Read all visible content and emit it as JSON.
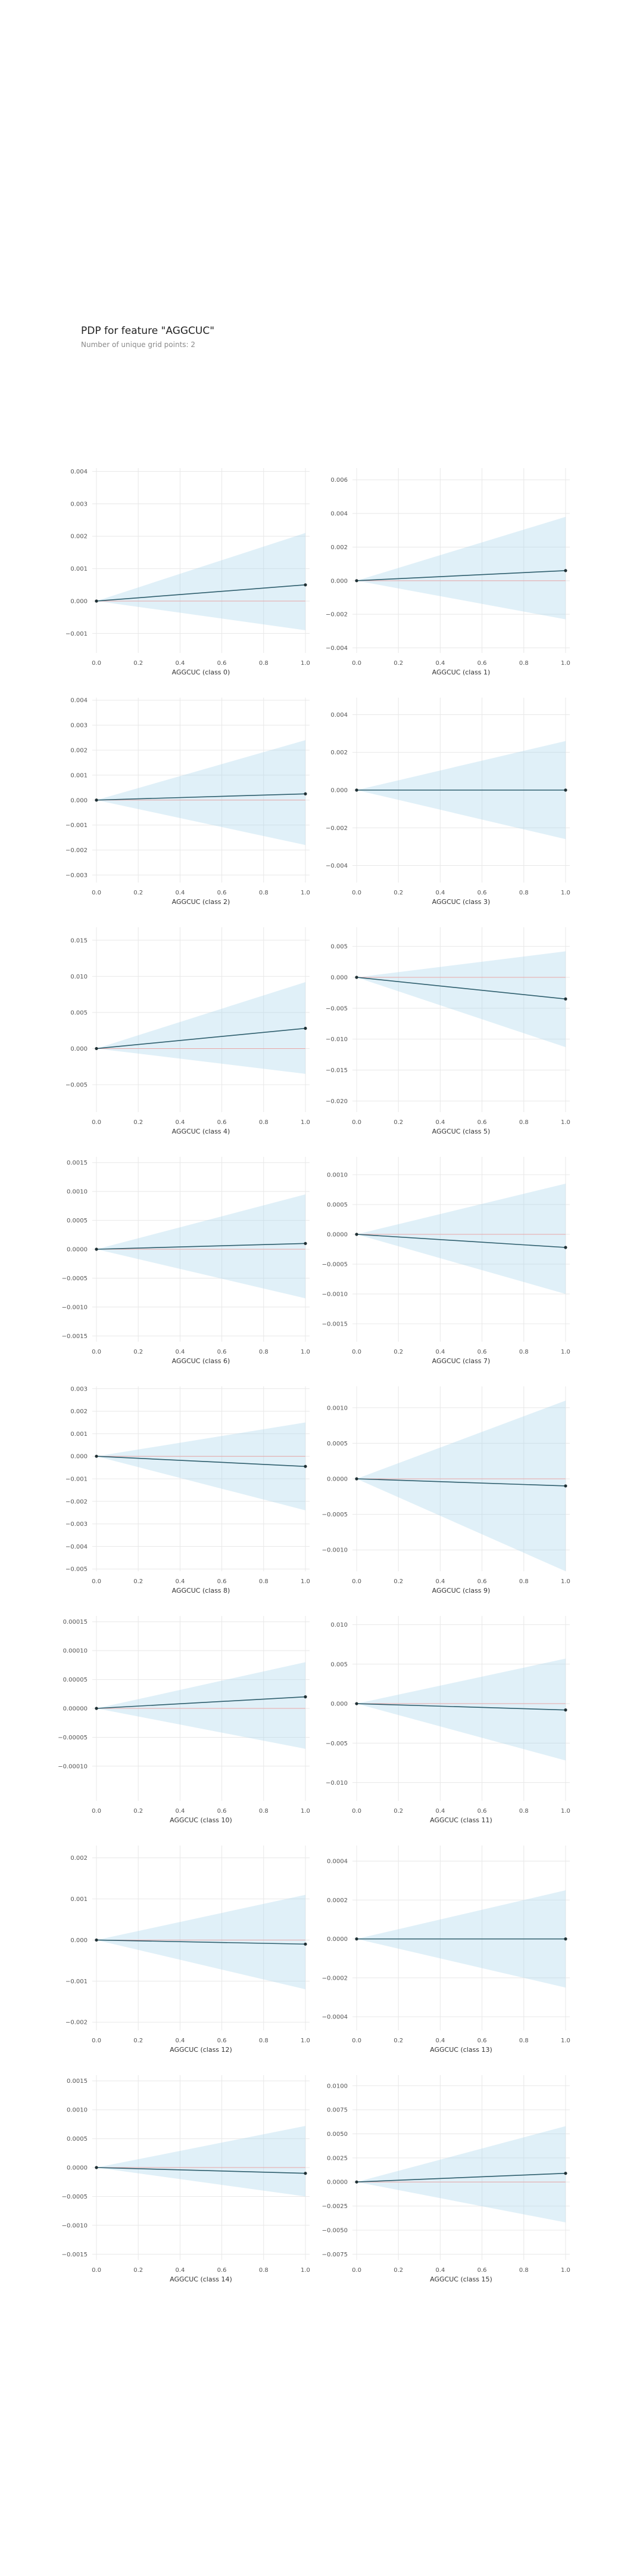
{
  "header": {
    "title": "PDP for feature \"AGGCUC\"",
    "subtitle": "Number of unique grid points: 2"
  },
  "chart_data": [
    {
      "type": "line",
      "xlabel": "AGGCUC (class 0)",
      "x": [
        0,
        1
      ],
      "y": [
        0,
        0.0005
      ],
      "band_low": [
        0,
        -0.0009
      ],
      "band_high": [
        0,
        0.0021
      ],
      "ylim": [
        -0.0016,
        0.0041
      ],
      "yticks": [
        0.004,
        0.003,
        0.002,
        0.001,
        0.0,
        -0.001
      ],
      "ytick_labels": [
        "0.004",
        "0.003",
        "0.002",
        "0.001",
        "0.000",
        "−0.001"
      ],
      "xticks": [
        0,
        0.2,
        0.4,
        0.6,
        0.8,
        1.0
      ],
      "xtick_labels": [
        "0.0",
        "0.2",
        "0.4",
        "0.6",
        "0.8",
        "1.0"
      ]
    },
    {
      "type": "line",
      "xlabel": "AGGCUC (class 1)",
      "x": [
        0,
        1
      ],
      "y": [
        0,
        0.0006
      ],
      "band_low": [
        0,
        -0.0023
      ],
      "band_high": [
        0,
        0.0038
      ],
      "ylim": [
        -0.0043,
        0.0067
      ],
      "yticks": [
        0.006,
        0.004,
        0.002,
        0.0,
        -0.002,
        -0.004
      ],
      "ytick_labels": [
        "0.006",
        "0.004",
        "0.002",
        "0.000",
        "−0.002",
        "−0.004"
      ],
      "xticks": [
        0,
        0.2,
        0.4,
        0.6,
        0.8,
        1.0
      ],
      "xtick_labels": [
        "0.0",
        "0.2",
        "0.4",
        "0.6",
        "0.8",
        "1.0"
      ]
    },
    {
      "type": "line",
      "xlabel": "AGGCUC (class 2)",
      "x": [
        0,
        1
      ],
      "y": [
        0,
        0.00025
      ],
      "band_low": [
        0,
        -0.0018
      ],
      "band_high": [
        0,
        0.0024
      ],
      "ylim": [
        -0.0033,
        0.0041
      ],
      "yticks": [
        0.004,
        0.003,
        0.002,
        0.001,
        0.0,
        -0.001,
        -0.002,
        -0.003
      ],
      "ytick_labels": [
        "0.004",
        "0.003",
        "0.002",
        "0.001",
        "0.000",
        "−0.001",
        "−0.002",
        "−0.003"
      ],
      "xticks": [
        0,
        0.2,
        0.4,
        0.6,
        0.8,
        1.0
      ],
      "xtick_labels": [
        "0.0",
        "0.2",
        "0.4",
        "0.6",
        "0.8",
        "1.0"
      ]
    },
    {
      "type": "line",
      "xlabel": "AGGCUC (class 3)",
      "x": [
        0,
        1
      ],
      "y": [
        0,
        0.0
      ],
      "band_low": [
        0,
        -0.0026
      ],
      "band_high": [
        0,
        0.0026
      ],
      "ylim": [
        -0.0049,
        0.0049
      ],
      "yticks": [
        0.004,
        0.002,
        0.0,
        -0.002,
        -0.004
      ],
      "ytick_labels": [
        "0.004",
        "0.002",
        "0.000",
        "−0.002",
        "−0.004"
      ],
      "xticks": [
        0,
        0.2,
        0.4,
        0.6,
        0.8,
        1.0
      ],
      "xtick_labels": [
        "0.0",
        "0.2",
        "0.4",
        "0.6",
        "0.8",
        "1.0"
      ]
    },
    {
      "type": "line",
      "xlabel": "AGGCUC (class 4)",
      "x": [
        0,
        1
      ],
      "y": [
        0,
        0.0028
      ],
      "band_low": [
        0,
        -0.0035
      ],
      "band_high": [
        0,
        0.0092
      ],
      "ylim": [
        -0.0088,
        0.0168
      ],
      "yticks": [
        0.015,
        0.01,
        0.005,
        0.0,
        -0.005
      ],
      "ytick_labels": [
        "0.015",
        "0.010",
        "0.005",
        "0.000",
        "−0.005"
      ],
      "xticks": [
        0,
        0.2,
        0.4,
        0.6,
        0.8,
        1.0
      ],
      "xtick_labels": [
        "0.0",
        "0.2",
        "0.4",
        "0.6",
        "0.8",
        "1.0"
      ]
    },
    {
      "type": "line",
      "xlabel": "AGGCUC (class 5)",
      "x": [
        0,
        1
      ],
      "y": [
        0,
        -0.0035
      ],
      "band_low": [
        0,
        -0.0113
      ],
      "band_high": [
        0,
        0.0042
      ],
      "ylim": [
        -0.0218,
        0.0081
      ],
      "yticks": [
        0.005,
        0.0,
        -0.005,
        -0.01,
        -0.015,
        -0.02
      ],
      "ytick_labels": [
        "0.005",
        "0.000",
        "−0.005",
        "−0.010",
        "−0.015",
        "−0.020"
      ],
      "xticks": [
        0,
        0.2,
        0.4,
        0.6,
        0.8,
        1.0
      ],
      "xtick_labels": [
        "0.0",
        "0.2",
        "0.4",
        "0.6",
        "0.8",
        "1.0"
      ]
    },
    {
      "type": "line",
      "xlabel": "AGGCUC (class 6)",
      "x": [
        0,
        1
      ],
      "y": [
        0,
        0.0001
      ],
      "band_low": [
        0,
        -0.00085
      ],
      "band_high": [
        0,
        0.00095
      ],
      "ylim": [
        -0.0016,
        0.0016
      ],
      "yticks": [
        0.0015,
        0.001,
        0.0005,
        0.0,
        -0.0005,
        -0.001,
        -0.0015
      ],
      "ytick_labels": [
        "0.0015",
        "0.0010",
        "0.0005",
        "0.0000",
        "−0.0005",
        "−0.0010",
        "−0.0015"
      ],
      "xticks": [
        0,
        0.2,
        0.4,
        0.6,
        0.8,
        1.0
      ],
      "xtick_labels": [
        "0.0",
        "0.2",
        "0.4",
        "0.6",
        "0.8",
        "1.0"
      ]
    },
    {
      "type": "line",
      "xlabel": "AGGCUC (class 7)",
      "x": [
        0,
        1
      ],
      "y": [
        0,
        -0.00022
      ],
      "band_low": [
        0,
        -0.001
      ],
      "band_high": [
        0,
        0.00085
      ],
      "ylim": [
        -0.0018,
        0.0013
      ],
      "yticks": [
        0.001,
        0.0005,
        0.0,
        -0.0005,
        -0.001,
        -0.0015
      ],
      "ytick_labels": [
        "0.0010",
        "0.0005",
        "0.0000",
        "−0.0005",
        "−0.0010",
        "−0.0015"
      ],
      "xticks": [
        0,
        0.2,
        0.4,
        0.6,
        0.8,
        1.0
      ],
      "xtick_labels": [
        "0.0",
        "0.2",
        "0.4",
        "0.6",
        "0.8",
        "1.0"
      ]
    },
    {
      "type": "line",
      "xlabel": "AGGCUC (class 8)",
      "x": [
        0,
        1
      ],
      "y": [
        0,
        -0.00045
      ],
      "band_low": [
        0,
        -0.0024
      ],
      "band_high": [
        0,
        0.0015
      ],
      "ylim": [
        -0.0051,
        0.0031
      ],
      "yticks": [
        0.003,
        0.002,
        0.001,
        0.0,
        -0.001,
        -0.002,
        -0.003,
        -0.004,
        -0.005
      ],
      "ytick_labels": [
        "0.003",
        "0.002",
        "0.001",
        "0.000",
        "−0.001",
        "−0.002",
        "−0.003",
        "−0.004",
        "−0.005"
      ],
      "xticks": [
        0,
        0.2,
        0.4,
        0.6,
        0.8,
        1.0
      ],
      "xtick_labels": [
        "0.0",
        "0.2",
        "0.4",
        "0.6",
        "0.8",
        "1.0"
      ]
    },
    {
      "type": "line",
      "xlabel": "AGGCUC (class 9)",
      "x": [
        0,
        1
      ],
      "y": [
        0,
        -0.0001
      ],
      "band_low": [
        0,
        -0.0013
      ],
      "band_high": [
        0,
        0.0011
      ],
      "ylim": [
        -0.0013,
        0.0013
      ],
      "yticks": [
        0.001,
        0.0005,
        0.0,
        -0.0005,
        -0.001
      ],
      "ytick_labels": [
        "0.0010",
        "0.0005",
        "0.0000",
        "−0.0005",
        "−0.0010"
      ],
      "xticks": [
        0,
        0.2,
        0.4,
        0.6,
        0.8,
        1.0
      ],
      "xtick_labels": [
        "0.0",
        "0.2",
        "0.4",
        "0.6",
        "0.8",
        "1.0"
      ]
    },
    {
      "type": "line",
      "xlabel": "AGGCUC (class 10)",
      "x": [
        0,
        1
      ],
      "y": [
        0,
        2e-05
      ],
      "band_low": [
        0,
        -7e-05
      ],
      "band_high": [
        0,
        8e-05
      ],
      "ylim": [
        -0.00016,
        0.00016
      ],
      "yticks": [
        0.00015,
        0.0001,
        5e-05,
        0.0,
        -5e-05,
        -0.0001
      ],
      "ytick_labels": [
        "0.00015",
        "0.00010",
        "0.00005",
        "0.00000",
        "−0.00005",
        "−0.00010"
      ],
      "xticks": [
        0,
        0.2,
        0.4,
        0.6,
        0.8,
        1.0
      ],
      "xtick_labels": [
        "0.0",
        "0.2",
        "0.4",
        "0.6",
        "0.8",
        "1.0"
      ]
    },
    {
      "type": "line",
      "xlabel": "AGGCUC (class 11)",
      "x": [
        0,
        1
      ],
      "y": [
        0,
        -0.0008
      ],
      "band_low": [
        0,
        -0.0072
      ],
      "band_high": [
        0,
        0.0057
      ],
      "ylim": [
        -0.0123,
        0.0111
      ],
      "yticks": [
        0.01,
        0.005,
        0.0,
        -0.005,
        -0.01
      ],
      "ytick_labels": [
        "0.010",
        "0.005",
        "0.000",
        "−0.005",
        "−0.010"
      ],
      "xticks": [
        0,
        0.2,
        0.4,
        0.6,
        0.8,
        1.0
      ],
      "xtick_labels": [
        "0.0",
        "0.2",
        "0.4",
        "0.6",
        "0.8",
        "1.0"
      ]
    },
    {
      "type": "line",
      "xlabel": "AGGCUC (class 12)",
      "x": [
        0,
        1
      ],
      "y": [
        0,
        -0.0001
      ],
      "band_low": [
        0,
        -0.0012
      ],
      "band_high": [
        0,
        0.0011
      ],
      "ylim": [
        -0.0022,
        0.0023
      ],
      "yticks": [
        0.002,
        0.001,
        0.0,
        -0.001,
        -0.002
      ],
      "ytick_labels": [
        "0.002",
        "0.001",
        "0.000",
        "−0.001",
        "−0.002"
      ],
      "xticks": [
        0,
        0.2,
        0.4,
        0.6,
        0.8,
        1.0
      ],
      "xtick_labels": [
        "0.0",
        "0.2",
        "0.4",
        "0.6",
        "0.8",
        "1.0"
      ]
    },
    {
      "type": "line",
      "xlabel": "AGGCUC (class 13)",
      "x": [
        0,
        1
      ],
      "y": [
        0,
        0.0
      ],
      "band_low": [
        0,
        -0.00025
      ],
      "band_high": [
        0,
        0.00025
      ],
      "ylim": [
        -0.00047,
        0.00048
      ],
      "yticks": [
        0.0004,
        0.0002,
        0.0,
        -0.0002,
        -0.0004
      ],
      "ytick_labels": [
        "0.0004",
        "0.0002",
        "0.0000",
        "−0.0002",
        "−0.0004"
      ],
      "xticks": [
        0,
        0.2,
        0.4,
        0.6,
        0.8,
        1.0
      ],
      "xtick_labels": [
        "0.0",
        "0.2",
        "0.4",
        "0.6",
        "0.8",
        "1.0"
      ]
    },
    {
      "type": "line",
      "xlabel": "AGGCUC (class 14)",
      "x": [
        0,
        1
      ],
      "y": [
        0,
        -0.0001
      ],
      "band_low": [
        0,
        -0.0005
      ],
      "band_high": [
        0,
        0.00072
      ],
      "ylim": [
        -0.0016,
        0.0016
      ],
      "yticks": [
        0.0015,
        0.001,
        0.0005,
        0.0,
        -0.0005,
        -0.001,
        -0.0015
      ],
      "ytick_labels": [
        "0.0015",
        "0.0010",
        "0.0005",
        "0.0000",
        "−0.0005",
        "−0.0010",
        "−0.0015"
      ],
      "xticks": [
        0,
        0.2,
        0.4,
        0.6,
        0.8,
        1.0
      ],
      "xtick_labels": [
        "0.0",
        "0.2",
        "0.4",
        "0.6",
        "0.8",
        "1.0"
      ]
    },
    {
      "type": "line",
      "xlabel": "AGGCUC (class 15)",
      "x": [
        0,
        1
      ],
      "y": [
        0,
        0.0009
      ],
      "band_low": [
        0,
        -0.0042
      ],
      "band_high": [
        0,
        0.0058
      ],
      "ylim": [
        -0.0081,
        0.0111
      ],
      "yticks": [
        0.01,
        0.0075,
        0.005,
        0.0025,
        0.0,
        -0.0025,
        -0.005,
        -0.0075
      ],
      "ytick_labels": [
        "0.0100",
        "0.0075",
        "0.0050",
        "0.0025",
        "0.0000",
        "−0.0025",
        "−0.0050",
        "−0.0075"
      ],
      "xticks": [
        0,
        0.2,
        0.4,
        0.6,
        0.8,
        1.0
      ],
      "xtick_labels": [
        "0.0",
        "0.2",
        "0.4",
        "0.6",
        "0.8",
        "1.0"
      ]
    }
  ]
}
